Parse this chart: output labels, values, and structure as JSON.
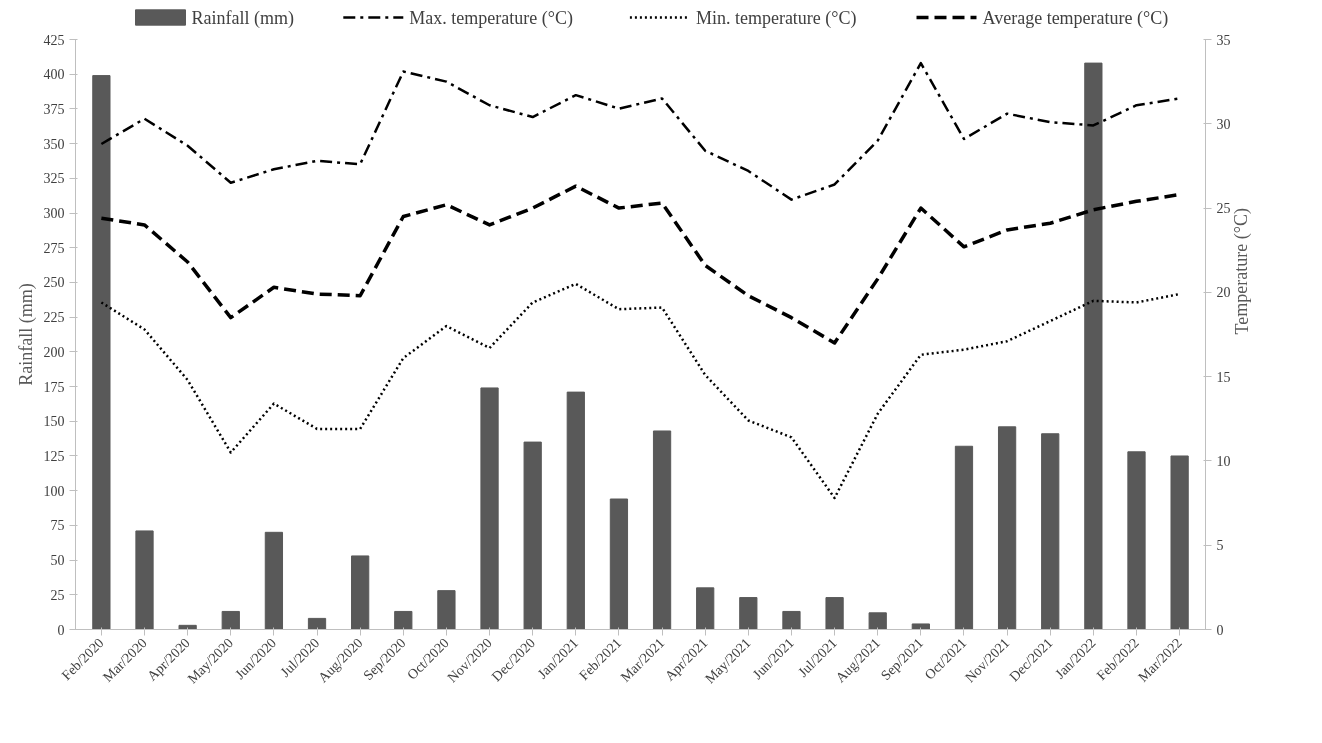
{
  "chart_data": {
    "type": "bar",
    "ylabel": "Rainfall (mm)",
    "y2label": "Temperature (°C)",
    "categories": [
      "Feb/2020",
      "Mar/2020",
      "Apr/2020",
      "May/2020",
      "Jun/2020",
      "Jul/2020",
      "Aug/2020",
      "Sep/2020",
      "Oct/2020",
      "Nov/2020",
      "Dec/2020",
      "Jan/2021",
      "Feb/2021",
      "Mar/2021",
      "Apr/2021",
      "May/2021",
      "Jun/2021",
      "Jul/2021",
      "Aug/2021",
      "Sep/2021",
      "Oct/2021",
      "Nov/2021",
      "Dec/2021",
      "Jan/2022",
      "Feb/2022",
      "Mar/2022"
    ],
    "series": [
      {
        "name": "Rainfall (mm)",
        "color": "#595959",
        "values": [
          399,
          71,
          3,
          13,
          70,
          8,
          53,
          13,
          28,
          174,
          135,
          171,
          94,
          143,
          30,
          23,
          13,
          23,
          12,
          4,
          132,
          146,
          141,
          408,
          128,
          125
        ]
      },
      {
        "name": "Max. temperature (°C)",
        "type": "line",
        "axis": "y2",
        "color": "#000000",
        "line_style": "dashdot",
        "values": [
          28.8,
          30.3,
          28.7,
          26.5,
          27.3,
          27.8,
          27.6,
          33.1,
          32.5,
          31.1,
          30.4,
          31.7,
          30.9,
          31.5,
          28.4,
          27.2,
          25.5,
          26.4,
          29.0,
          33.6,
          29.1,
          30.6,
          30.1,
          29.9,
          31.1,
          31.5
        ]
      },
      {
        "name": "Min. temperature (°C)",
        "type": "line",
        "axis": "y2",
        "color": "#000000",
        "line_style": "dotted",
        "values": [
          19.4,
          17.8,
          14.8,
          10.5,
          13.4,
          11.9,
          11.9,
          16.1,
          18.0,
          16.7,
          19.4,
          20.5,
          19.0,
          19.1,
          15.1,
          12.4,
          11.4,
          7.8,
          12.8,
          16.3,
          16.6,
          17.1,
          18.3,
          19.5,
          19.4,
          19.9
        ]
      },
      {
        "name": "Average temperature (°C)",
        "type": "line",
        "axis": "y2",
        "color": "#000000",
        "line_style": "dashed",
        "values": [
          24.4,
          24.0,
          21.8,
          18.5,
          20.3,
          19.9,
          19.8,
          24.5,
          25.2,
          24.0,
          25.0,
          26.3,
          25.0,
          25.3,
          21.6,
          19.8,
          18.5,
          17.0,
          20.8,
          25.0,
          22.7,
          23.7,
          24.1,
          24.9,
          25.4,
          25.8
        ]
      }
    ],
    "ylim": [
      0,
      425
    ],
    "yticks": [
      0,
      25,
      50,
      75,
      100,
      125,
      150,
      175,
      200,
      225,
      250,
      275,
      300,
      325,
      350,
      375,
      400,
      425
    ],
    "y2lim": [
      0,
      35
    ],
    "y2ticks": [
      0,
      5,
      10,
      15,
      20,
      25,
      30,
      35
    ],
    "grid": false,
    "legend": "top"
  }
}
